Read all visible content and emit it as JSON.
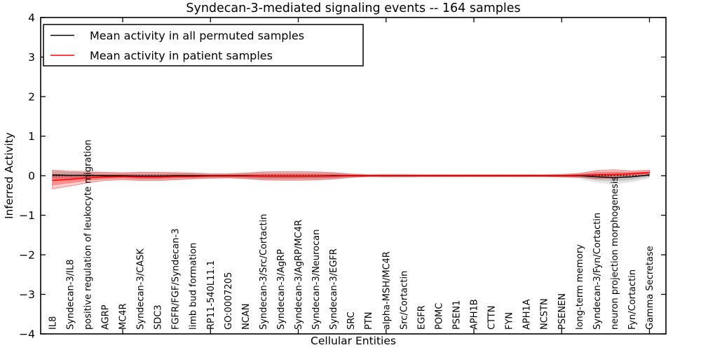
{
  "figure": {
    "title": "Syndecan-3-mediated signaling events -- 164 samples",
    "xlabel": "Cellular Entities",
    "ylabel": "Inferred Activity",
    "background_color": "#ffffff",
    "line_color_permuted": "#000000",
    "line_color_patient": "#ff0000"
  },
  "legend": {
    "entries": [
      {
        "label": "Mean activity in all permuted samples",
        "color": "#000000"
      },
      {
        "label": "Mean activity in patient samples",
        "color": "#ff0000"
      }
    ]
  },
  "chart_data": {
    "type": "line",
    "title": "Syndecan-3-mediated signaling events -- 164 samples",
    "xlabel": "Cellular Entities",
    "ylabel": "Inferred Activity",
    "ylim": [
      -4,
      4
    ],
    "ytick_values": [
      4,
      3,
      2,
      1,
      0,
      -1,
      -2,
      -3,
      -4
    ],
    "ytick_labels": [
      "4",
      "3",
      "2",
      "1",
      "0",
      "−1",
      "−2",
      "−3",
      "−4"
    ],
    "grid": false,
    "legend_position": "upper left",
    "zero_reference_line": 0,
    "x_major_tick_indices": [
      5,
      10,
      15,
      20,
      25,
      30,
      35
    ],
    "categories": [
      "IL8",
      "Syndecan-3/IL8",
      "positive regulation of leukocyte migration",
      "AGRP",
      "MC4R",
      "Syndecan-3/CASK",
      "SDC3",
      "FGFR/FGF/Syndecan-3",
      "limb bud formation",
      "RP11-540L11.1",
      "GO:0007205",
      "NCAN",
      "Syndecan-3/Src/Cortactin",
      "Syndecan-3/AgRP",
      "Syndecan-3/AgRP/MC4R",
      "Syndecan-3/Neurocan",
      "Syndecan-3/EGFR",
      "SRC",
      "PTN",
      "alpha-MSH/MC4R",
      "Src/Cortactin",
      "EGFR",
      "POMC",
      "PSEN1",
      "APH1B",
      "CTTN",
      "FYN",
      "APH1A",
      "NCSTN",
      "PSENEN",
      "long-term memory",
      "Syndecan-3/Fyn/Cortactin",
      "neuron projection morphogenesis",
      "Fyn/Cortactin",
      "Gamma Secretase"
    ],
    "series": [
      {
        "name": "Mean activity in all permuted samples",
        "color": "#000000",
        "values": [
          0.02,
          0.01,
          0.01,
          0.0,
          0.0,
          -0.01,
          -0.01,
          0.0,
          0.0,
          0.0,
          0.0,
          0.0,
          -0.01,
          -0.01,
          -0.01,
          -0.01,
          0.0,
          0.0,
          0.0,
          0.0,
          0.0,
          0.0,
          0.0,
          0.0,
          0.0,
          0.0,
          0.0,
          0.0,
          0.0,
          0.0,
          0.0,
          -0.03,
          -0.05,
          -0.03,
          0.02
        ]
      },
      {
        "name": "Mean activity in patient samples",
        "color": "#ff0000",
        "values": [
          -0.12,
          -0.09,
          -0.05,
          -0.03,
          -0.02,
          -0.03,
          -0.03,
          -0.02,
          -0.02,
          -0.01,
          -0.01,
          -0.01,
          -0.01,
          -0.01,
          -0.01,
          -0.01,
          -0.01,
          0.0,
          0.0,
          0.0,
          0.0,
          0.0,
          0.0,
          0.0,
          0.0,
          0.0,
          0.0,
          0.0,
          0.0,
          0.0,
          0.01,
          0.02,
          0.03,
          0.05,
          0.08
        ]
      }
    ],
    "bands": [
      {
        "name": "permuted-confidence-band",
        "color": "#000000",
        "upper": [
          0.12,
          0.1,
          0.09,
          0.07,
          0.06,
          0.07,
          0.07,
          0.07,
          0.06,
          0.05,
          0.05,
          0.06,
          0.07,
          0.07,
          0.07,
          0.07,
          0.07,
          0.04,
          0.03,
          0.04,
          0.04,
          0.03,
          0.03,
          0.03,
          0.03,
          0.03,
          0.03,
          0.03,
          0.03,
          0.03,
          0.05,
          0.07,
          0.06,
          0.06,
          0.08
        ],
        "lower": [
          -0.08,
          -0.08,
          -0.07,
          -0.07,
          -0.06,
          -0.09,
          -0.09,
          -0.07,
          -0.06,
          -0.05,
          -0.05,
          -0.06,
          -0.09,
          -0.09,
          -0.09,
          -0.09,
          -0.07,
          -0.04,
          -0.03,
          -0.04,
          -0.04,
          -0.03,
          -0.03,
          -0.03,
          -0.03,
          -0.03,
          -0.03,
          -0.03,
          -0.03,
          -0.03,
          -0.05,
          -0.13,
          -0.16,
          -0.12,
          -0.04
        ]
      },
      {
        "name": "patient-confidence-band",
        "color": "#ff0000",
        "upper": [
          0.13,
          0.1,
          0.09,
          0.08,
          0.07,
          0.08,
          0.08,
          0.07,
          0.06,
          0.04,
          0.04,
          0.06,
          0.09,
          0.1,
          0.1,
          0.09,
          0.07,
          0.04,
          0.02,
          0.02,
          0.02,
          0.02,
          0.02,
          0.02,
          0.02,
          0.02,
          0.02,
          0.02,
          0.02,
          0.03,
          0.05,
          0.13,
          0.15,
          0.12,
          0.14
        ],
        "lower": [
          -0.33,
          -0.26,
          -0.18,
          -0.12,
          -0.1,
          -0.12,
          -0.12,
          -0.1,
          -0.08,
          -0.06,
          -0.05,
          -0.07,
          -0.1,
          -0.11,
          -0.11,
          -0.1,
          -0.08,
          -0.04,
          -0.02,
          -0.02,
          -0.02,
          -0.02,
          -0.02,
          -0.02,
          -0.02,
          -0.02,
          -0.02,
          -0.02,
          -0.02,
          -0.03,
          -0.04,
          -0.07,
          -0.06,
          -0.03,
          0.02
        ]
      }
    ]
  }
}
